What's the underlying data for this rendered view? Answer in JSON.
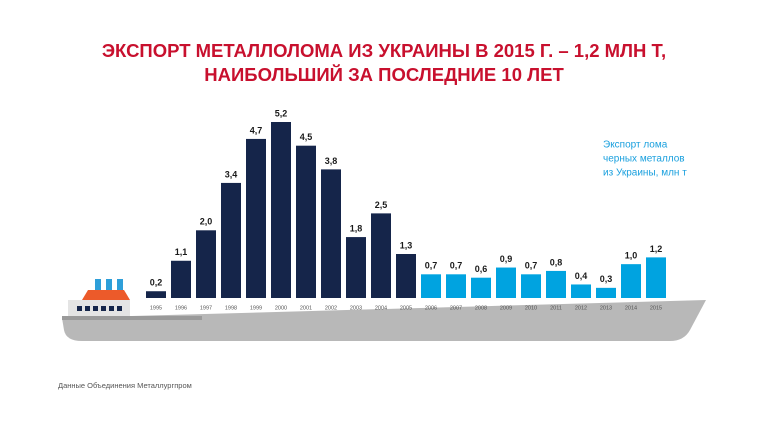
{
  "chart_data": {
    "type": "bar",
    "title": [
      "ЭКСПОРТ МЕТАЛЛОЛОМА ИЗ УКРАИНЫ В 2015 Г. – 1,2 МЛН Т,",
      "НАИБОЛЬШИЙ ЗА ПОСЛЕДНИЕ 10 ЛЕТ"
    ],
    "annotation": [
      "Экспорт лома",
      "черных металлов",
      "из Украины, млн т"
    ],
    "source": "Данные Объединения Металлургпром",
    "categories": [
      "1995",
      "1996",
      "1997",
      "1998",
      "1999",
      "2000",
      "2001",
      "2002",
      "2003",
      "2004",
      "2005",
      "2006",
      "2007",
      "2008",
      "2009",
      "2010",
      "2011",
      "2012",
      "2013",
      "2014",
      "2015"
    ],
    "values": [
      0.2,
      1.1,
      2.0,
      3.4,
      4.7,
      5.2,
      4.5,
      3.8,
      1.8,
      2.5,
      1.3,
      0.7,
      0.7,
      0.6,
      0.9,
      0.7,
      0.8,
      0.4,
      0.3,
      1.0,
      1.2
    ],
    "value_labels": [
      "0,2",
      "1,1",
      "2,0",
      "3,4",
      "4,7",
      "5,2",
      "4,5",
      "3,8",
      "1,8",
      "2,5",
      "1,3",
      "0,7",
      "0,7",
      "0,6",
      "0,9",
      "0,7",
      "0,8",
      "0,4",
      "0,3",
      "1,0",
      "1,2"
    ],
    "colors": [
      "#15254a",
      "#15254a",
      "#15254a",
      "#15254a",
      "#15254a",
      "#15254a",
      "#15254a",
      "#15254a",
      "#15254a",
      "#15254a",
      "#15254a",
      "#00a3e0",
      "#00a3e0",
      "#00a3e0",
      "#00a3e0",
      "#00a3e0",
      "#00a3e0",
      "#00a3e0",
      "#00a3e0",
      "#00a3e0",
      "#00a3e0"
    ]
  }
}
